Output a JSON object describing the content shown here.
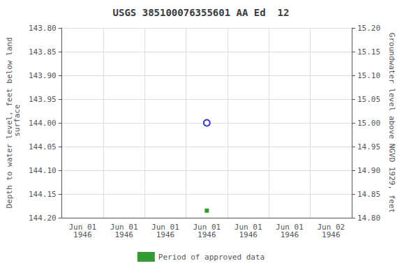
{
  "chart_data": {
    "type": "scatter",
    "title": "USGS 385100076355601 AA Ed  12",
    "ylabel": "Depth to water level, feet below land\n surface",
    "y2label": "Groundwater level above NGVD 1929, feet",
    "categories": [
      "Jun 01\n1946",
      "Jun 01\n1946",
      "Jun 01\n1946",
      "Jun 01\n1946",
      "Jun 01\n1946",
      "Jun 01\n1946",
      "Jun 02\n1946"
    ],
    "ylim": [
      144.2,
      143.8
    ],
    "yticks": [
      {
        "value": 143.8,
        "label": "143.80"
      },
      {
        "value": 143.85,
        "label": "143.85"
      },
      {
        "value": 143.9,
        "label": "143.90"
      },
      {
        "value": 143.95,
        "label": "143.95"
      },
      {
        "value": 144.0,
        "label": "144.00"
      },
      144.05,
      {
        "value": 144.1,
        "label": "144.10"
      },
      144.15,
      {
        "value": 144.2,
        "label": "144.20"
      }
    ],
    "y2lim": [
      14.8,
      15.2
    ],
    "y2ticks": [
      {
        "value": 14.8,
        "label": "14.80"
      },
      14.85,
      {
        "value": 14.9,
        "label": "14.90"
      },
      14.95,
      {
        "value": 15.0,
        "label": "15.00"
      },
      15.05,
      {
        "value": 15.1,
        "label": "15.10"
      },
      15.15,
      {
        "value": 15.2,
        "label": "15.20"
      }
    ],
    "grid": true,
    "legend": "bottom",
    "series": [
      {
        "color": "#0000cc",
        "marker": "open_circle",
        "values": [
          null,
          null,
          null,
          144.0,
          null,
          null,
          null
        ]
      },
      {
        "name": "Period of approved data",
        "color": "#008000",
        "marker": "square",
        "values": [
          null,
          null,
          null,
          144.185,
          null,
          null,
          null
        ]
      }
    ]
  }
}
